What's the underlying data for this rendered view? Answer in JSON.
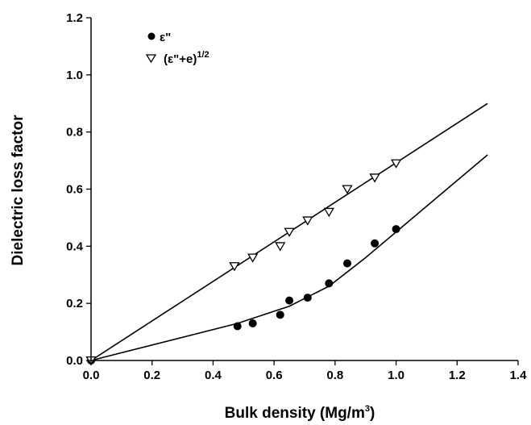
{
  "chart_data": {
    "type": "scatter",
    "xlabel": "Bulk density (Mg/m",
    "xlabel_sup": "3",
    "xlabel_tail": ")",
    "ylabel": "Dielectric loss factor",
    "xlim": [
      0,
      1.4
    ],
    "ylim": [
      0,
      1.2
    ],
    "x_ticks": [
      "0.0",
      "0.2",
      "0.4",
      "0.6",
      "0.8",
      "1.0",
      "1.2",
      "1.4"
    ],
    "y_ticks": [
      "0.0",
      "0.2",
      "0.4",
      "0.6",
      "0.8",
      "1.0",
      "1.2"
    ],
    "grid": false,
    "legend_position": "top-left",
    "series": [
      {
        "name": "ε\"",
        "marker": "filled-circle",
        "color": "#000000",
        "x": [
          0.0,
          0.48,
          0.53,
          0.62,
          0.65,
          0.71,
          0.78,
          0.84,
          0.93,
          1.0
        ],
        "y": [
          0.0,
          0.12,
          0.13,
          0.16,
          0.21,
          0.22,
          0.27,
          0.34,
          0.41,
          0.46
        ]
      },
      {
        "name": "(ε\"+e)",
        "name_sup": "1/2",
        "marker": "open-triangle-down",
        "color": "#000000",
        "x": [
          0.0,
          0.47,
          0.53,
          0.62,
          0.65,
          0.71,
          0.78,
          0.84,
          0.93,
          1.0
        ],
        "y": [
          0.0,
          0.33,
          0.36,
          0.4,
          0.45,
          0.49,
          0.52,
          0.6,
          0.64,
          0.69
        ]
      }
    ],
    "fit_lines": [
      {
        "x": [
          0.0,
          0.48,
          0.65,
          0.78,
          0.9,
          1.0,
          1.3
        ],
        "y": [
          0.0,
          0.13,
          0.19,
          0.26,
          0.36,
          0.45,
          0.72
        ]
      },
      {
        "x": [
          0.0,
          1.3
        ],
        "y": [
          0.0,
          0.9
        ]
      }
    ]
  }
}
